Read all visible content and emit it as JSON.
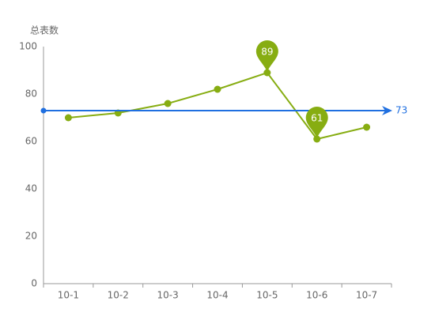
{
  "chart_data": {
    "type": "line",
    "y_axis_name": "总表数",
    "categories": [
      "10-1",
      "10-2",
      "10-3",
      "10-4",
      "10-5",
      "10-6",
      "10-7"
    ],
    "series": [
      {
        "color": "#87ad12",
        "values": [
          70,
          72,
          76,
          82,
          89,
          61,
          66
        ]
      }
    ],
    "ylim": [
      0,
      100
    ],
    "yticks": [
      0,
      20,
      40,
      60,
      80,
      100
    ],
    "grid": false,
    "mark_points": [
      89,
      61
    ],
    "mark_line": {
      "value": 73,
      "color": "#1f6fe0"
    }
  }
}
